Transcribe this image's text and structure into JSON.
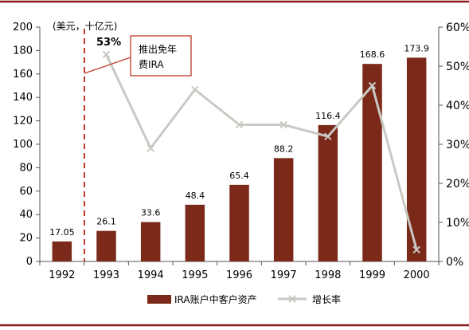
{
  "chart_data": {
    "type": "bar+line",
    "unit_label": "(美元，十亿元)",
    "categories": [
      "1992",
      "1993",
      "1994",
      "1995",
      "1996",
      "1997",
      "1998",
      "1999",
      "2000"
    ],
    "series": [
      {
        "name": "IRA账户中客户资产",
        "kind": "bar",
        "axis": "left",
        "color": "#7B2A1A",
        "values": [
          17.05,
          26.1,
          33.6,
          48.4,
          65.4,
          88.2,
          116.4,
          168.6,
          173.9
        ],
        "labels": [
          "17.05",
          "26.1",
          "33.6",
          "48.4",
          "65.4",
          "88.2",
          "116.4",
          "168.6",
          "173.9"
        ]
      },
      {
        "name": "增长率",
        "kind": "line",
        "axis": "right",
        "color": "#C9C9C4",
        "values": [
          null,
          53,
          29,
          44,
          35,
          35,
          32,
          45,
          3
        ]
      }
    ],
    "y_left": {
      "min": 0,
      "max": 200,
      "step": 20
    },
    "y_right": {
      "min": 0,
      "max": 60,
      "step": 10,
      "suffix": "%"
    },
    "annotations": {
      "peak_label": "53%",
      "callout_lines": [
        "推出免年",
        "费IRA"
      ]
    },
    "legend_position": "bottom",
    "frame_color": "#8B1A1A"
  }
}
